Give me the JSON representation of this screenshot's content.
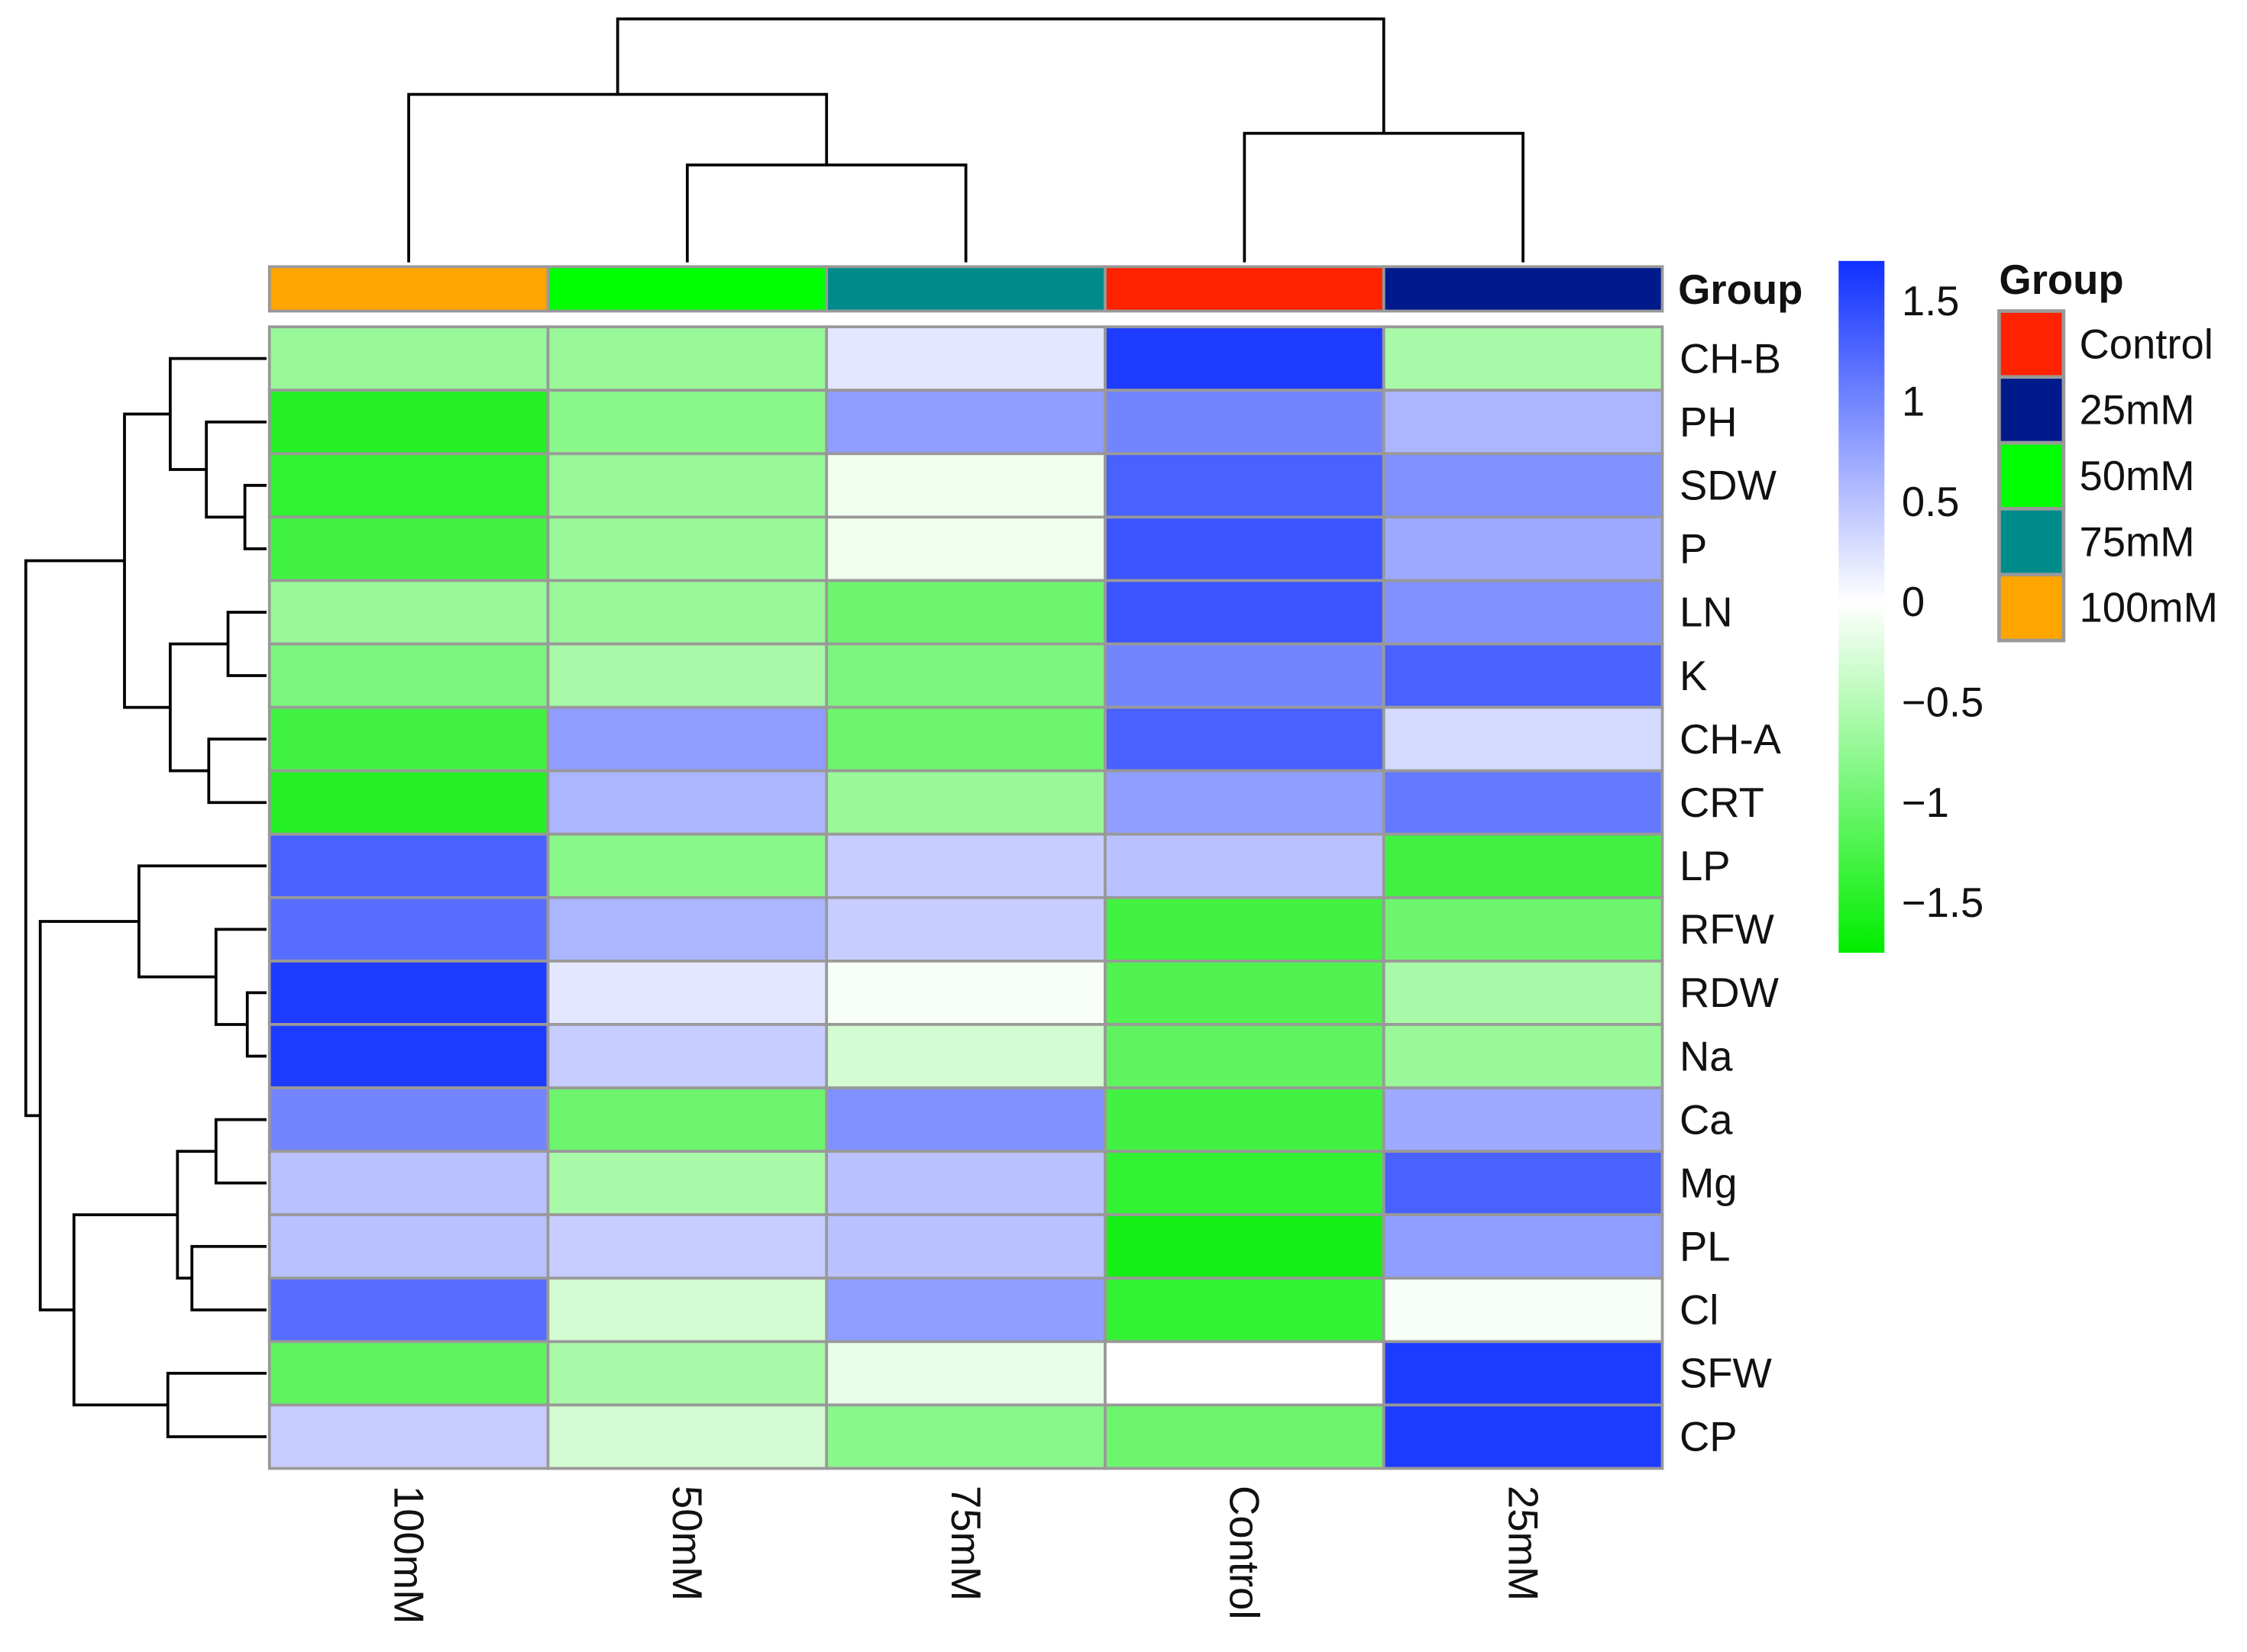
{
  "chart_data": {
    "type": "heatmap",
    "columns": [
      "100mM",
      "50mM",
      "75mM",
      "Control",
      "25mM"
    ],
    "rows": [
      "CH-B",
      "PH",
      "SDW",
      "P",
      "LN",
      "K",
      "CH-A",
      "CRT",
      "LP",
      "RFW",
      "RDW",
      "Na",
      "Ca",
      "Mg",
      "PL",
      "Cl",
      "SFW",
      "CP"
    ],
    "values": [
      [
        -0.7,
        -0.7,
        0.2,
        1.6,
        -0.6
      ],
      [
        -1.5,
        -0.8,
        0.8,
        1.0,
        0.6
      ],
      [
        -1.4,
        -0.7,
        -0.1,
        1.3,
        0.9
      ],
      [
        -1.3,
        -0.7,
        -0.1,
        1.4,
        0.7
      ],
      [
        -0.7,
        -0.7,
        -1.0,
        1.4,
        0.9
      ],
      [
        -0.9,
        -0.6,
        -0.9,
        1.0,
        1.3
      ],
      [
        -1.3,
        0.8,
        -1.0,
        1.3,
        0.3
      ],
      [
        -1.5,
        0.6,
        -0.7,
        0.8,
        1.1
      ],
      [
        1.3,
        -0.8,
        0.4,
        0.5,
        -1.3
      ],
      [
        1.2,
        0.6,
        0.4,
        -1.3,
        -1.0
      ],
      [
        1.6,
        0.2,
        -0.05,
        -1.2,
        -0.6
      ],
      [
        1.6,
        0.4,
        -0.3,
        -1.1,
        -0.7
      ],
      [
        1.0,
        -1.0,
        0.9,
        -1.3,
        0.7
      ],
      [
        0.5,
        -0.6,
        0.5,
        -1.4,
        1.3
      ],
      [
        0.5,
        0.4,
        0.5,
        -1.6,
        0.8
      ],
      [
        1.2,
        -0.3,
        0.8,
        -1.4,
        -0.05
      ],
      [
        -1.1,
        -0.6,
        -0.15,
        0.0,
        1.6
      ],
      [
        0.4,
        -0.3,
        -0.8,
        -1.0,
        1.6
      ]
    ],
    "color_scale": {
      "range": [
        -1.75,
        1.7
      ],
      "low_color": "#00ee00",
      "mid_color": "#ffffff",
      "high_color": "#1030ff",
      "ticks": [
        1.5,
        1,
        0.5,
        0,
        -0.5,
        -1,
        -1.5
      ],
      "tick_labels": [
        "1.5",
        "1",
        "0.5",
        "0",
        "−0.5",
        "−1",
        "−1.5"
      ]
    },
    "annotation": {
      "title": "Group",
      "row_label": "Group",
      "legend": [
        {
          "name": "Control",
          "color": "#ff2200"
        },
        {
          "name": "25mM",
          "color": "#001a8c"
        },
        {
          "name": "50mM",
          "color": "#00ff00"
        },
        {
          "name": "75mM",
          "color": "#008b8b"
        },
        {
          "name": "100mM",
          "color": "#ffa500"
        }
      ]
    },
    "column_dendrogram": [
      10,
      [
        6.9,
        "100mM",
        [
          4.0,
          "50mM",
          "75mM"
        ]
      ],
      [
        5.3,
        "Control",
        "25mM"
      ]
    ],
    "row_dendrogram": [
      10,
      [
        5.9,
        [
          4.0,
          "CH-B",
          [
            2.5,
            "PH",
            [
              0.9,
              "SDW",
              "P"
            ]
          ]
        ],
        [
          4.0,
          [
            1.6,
            "LN",
            "K"
          ],
          [
            2.4,
            "CH-A",
            "CRT"
          ]
        ]
      ],
      [
        9.4,
        [
          5.3,
          "LP",
          [
            2.1,
            "RFW",
            [
              0.8,
              "RDW",
              "Na"
            ]
          ]
        ],
        [
          8.0,
          [
            3.7,
            [
              2.1,
              "Ca",
              "Mg"
            ],
            [
              3.1,
              "PL",
              "Cl"
            ]
          ],
          [
            4.1,
            "SFW",
            "CP"
          ]
        ]
      ]
    ]
  }
}
